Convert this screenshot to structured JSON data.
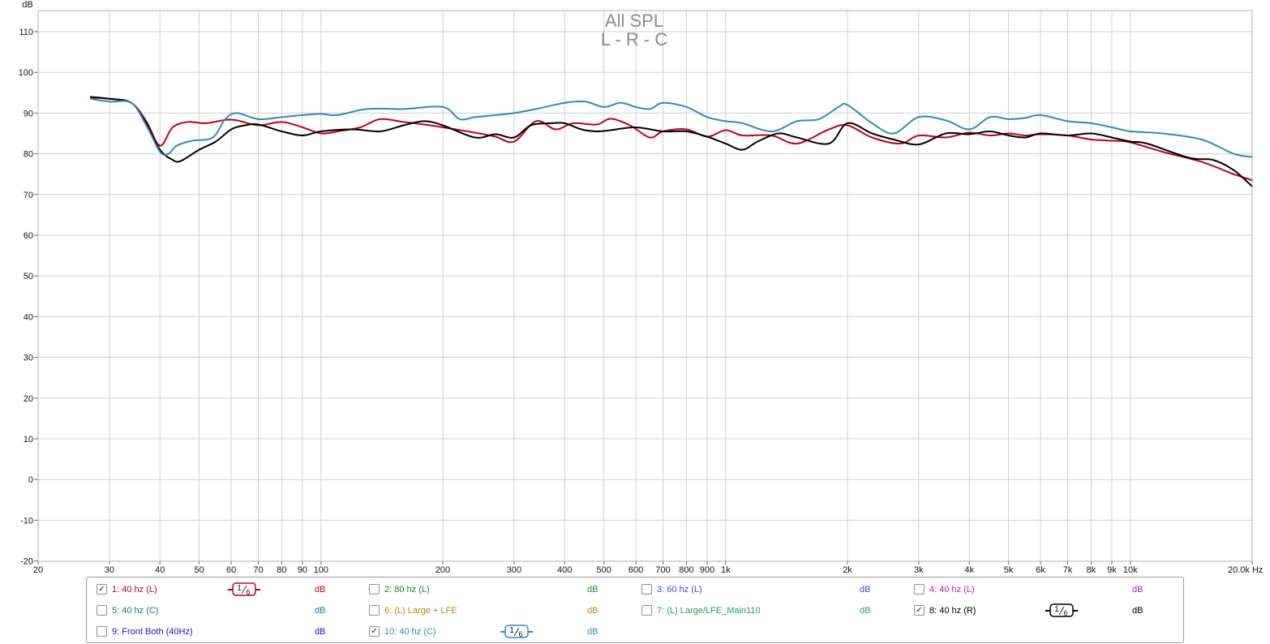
{
  "title_line1": "All SPL",
  "title_line2": "L - R - C",
  "chart_data": {
    "type": "line",
    "title": "All SPL",
    "subtitle": "L - R - C",
    "ylabel": "dB",
    "xlabel": "Hz",
    "x_scale": "log",
    "xlim": [
      20,
      20000
    ],
    "ylim": [
      -20,
      115
    ],
    "grid": true,
    "y_ticks": [
      110,
      100,
      90,
      80,
      70,
      60,
      50,
      40,
      30,
      20,
      10,
      0,
      -10,
      -20
    ],
    "x_ticks": [
      {
        "value": 20,
        "label": "20"
      },
      {
        "value": 30,
        "label": "30"
      },
      {
        "value": 40,
        "label": "40"
      },
      {
        "value": 50,
        "label": "50"
      },
      {
        "value": 60,
        "label": "60"
      },
      {
        "value": 70,
        "label": "70"
      },
      {
        "value": 80,
        "label": "80"
      },
      {
        "value": 90,
        "label": "90"
      },
      {
        "value": 100,
        "label": "100"
      },
      {
        "value": 200,
        "label": "200"
      },
      {
        "value": 300,
        "label": "300"
      },
      {
        "value": 400,
        "label": "400"
      },
      {
        "value": 500,
        "label": "500"
      },
      {
        "value": 600,
        "label": "600"
      },
      {
        "value": 700,
        "label": "700"
      },
      {
        "value": 800,
        "label": "800"
      },
      {
        "value": 900,
        "label": "900"
      },
      {
        "value": 1000,
        "label": "1k"
      },
      {
        "value": 2000,
        "label": "2k"
      },
      {
        "value": 3000,
        "label": "3k"
      },
      {
        "value": 4000,
        "label": "4k"
      },
      {
        "value": 5000,
        "label": "5k"
      },
      {
        "value": 6000,
        "label": "6k"
      },
      {
        "value": 7000,
        "label": "7k"
      },
      {
        "value": 8000,
        "label": "8k"
      },
      {
        "value": 9000,
        "label": "9k"
      },
      {
        "value": 10000,
        "label": "10k"
      },
      {
        "value": 20000,
        "label": "20.0k Hz"
      }
    ],
    "series": [
      {
        "name": "1: 40 hz (L)",
        "color": "#c0001a",
        "x": [
          27,
          30,
          34,
          37,
          40,
          43,
          47,
          52,
          58,
          62,
          70,
          80,
          90,
          100,
          110,
          125,
          140,
          160,
          180,
          200,
          240,
          270,
          300,
          340,
          380,
          420,
          480,
          520,
          580,
          650,
          700,
          800,
          900,
          1000,
          1100,
          1300,
          1500,
          1800,
          2000,
          2300,
          2700,
          3000,
          3500,
          4000,
          4500,
          5000,
          5500,
          6000,
          7000,
          8000,
          9000,
          10000,
          12000,
          15000,
          18000,
          20000
        ],
        "y": [
          94,
          93.5,
          92.5,
          88,
          82,
          86.5,
          87.8,
          87.5,
          88.3,
          88.2,
          87,
          87.8,
          86.5,
          85,
          85.5,
          86.5,
          88.5,
          87.8,
          87.2,
          86.5,
          85.2,
          84.2,
          83,
          88,
          86,
          87.5,
          87.2,
          88.6,
          87,
          84,
          85.5,
          86,
          84.2,
          85.8,
          84.5,
          84.5,
          82.5,
          86,
          87,
          84,
          82.5,
          84.5,
          84,
          85.2,
          84.5,
          85,
          84.5,
          84.8,
          84.5,
          83.5,
          83.2,
          82.8,
          80.5,
          78,
          75,
          73.5
        ]
      },
      {
        "name": "8: 40 hz (R)",
        "color": "#000000",
        "x": [
          27,
          30,
          34,
          37,
          40,
          43,
          45,
          50,
          55,
          60,
          65,
          70,
          80,
          90,
          100,
          120,
          140,
          160,
          180,
          200,
          240,
          270,
          300,
          330,
          370,
          400,
          440,
          480,
          520,
          600,
          700,
          800,
          900,
          1000,
          1100,
          1200,
          1350,
          1500,
          1800,
          2000,
          2300,
          2600,
          3000,
          3500,
          4000,
          4500,
          5000,
          5500,
          6000,
          7000,
          8000,
          9000,
          10000,
          11000,
          14000,
          16000,
          18000,
          20000
        ],
        "y": [
          93.8,
          93.5,
          92.5,
          87.5,
          81,
          78.5,
          78.2,
          81,
          83,
          86,
          87,
          87.2,
          85.5,
          84.5,
          85.5,
          86,
          85.5,
          87,
          88,
          87,
          84,
          84.8,
          84,
          87,
          87.5,
          87.5,
          86,
          85.5,
          85.8,
          86.5,
          85.5,
          85.5,
          84.2,
          82.5,
          81,
          83,
          85,
          84,
          82.5,
          87.5,
          85,
          83.5,
          82.3,
          85,
          84.8,
          85.5,
          84.5,
          84,
          85,
          84.5,
          85,
          84,
          83,
          82.5,
          79,
          78.5,
          76,
          72
        ]
      },
      {
        "name": "10: 40 hz (C)",
        "color": "#2f8ab8",
        "x": [
          27,
          30,
          34,
          37,
          40,
          42,
          44,
          48,
          54,
          58,
          62,
          70,
          80,
          90,
          100,
          110,
          130,
          160,
          200,
          220,
          240,
          270,
          300,
          340,
          400,
          450,
          500,
          550,
          600,
          650,
          700,
          800,
          900,
          1000,
          1100,
          1300,
          1500,
          1700,
          1900,
          2000,
          2300,
          2600,
          3000,
          3500,
          4000,
          4500,
          5000,
          5500,
          6000,
          7000,
          8000,
          9000,
          10000,
          12000,
          15000,
          18000,
          20000
        ],
        "y": [
          93.5,
          92.8,
          92.5,
          87,
          80.5,
          80,
          82,
          83.2,
          84,
          88.5,
          90,
          88.5,
          89,
          89.5,
          89.8,
          89.5,
          91,
          91,
          91.5,
          88.5,
          89,
          89.5,
          90,
          91,
          92.5,
          92.8,
          91.5,
          92.5,
          91.5,
          91,
          92.5,
          91.5,
          89,
          88,
          87.5,
          85.5,
          88,
          88.5,
          91.5,
          92,
          87.5,
          85,
          89,
          88.2,
          86,
          89,
          88.5,
          88.8,
          89.5,
          88,
          87.5,
          86.5,
          85.5,
          85,
          83.5,
          80,
          79.2
        ]
      }
    ]
  },
  "legend": {
    "items": [
      {
        "label": "1: 40 hz (L)",
        "color": "#c0001a",
        "checked": true,
        "smoothing": "1/6",
        "unit": "dB"
      },
      {
        "label": "2: 80 hz (L)",
        "color": "#1c8a1c",
        "checked": false,
        "smoothing": "",
        "unit": "dB"
      },
      {
        "label": "3: 60 hz (L)",
        "color": "#3b4fd1",
        "checked": false,
        "smoothing": "",
        "unit": "dB"
      },
      {
        "label": "4: 40 hz (L)",
        "color": "#b21fbd",
        "checked": false,
        "smoothing": "",
        "unit": "dB"
      },
      {
        "label": "5: 40 hz (C)",
        "color": "#117a8b",
        "checked": false,
        "smoothing": "",
        "unit": "dB"
      },
      {
        "label": "6: (L) Large + LFE",
        "color": "#b8860b",
        "checked": false,
        "smoothing": "",
        "unit": "dB"
      },
      {
        "label": "7: (L) Large/LFE_Main110",
        "color": "#22a05a",
        "checked": false,
        "smoothing": "",
        "unit": "dB"
      },
      {
        "label": "8: 40 hz (R)",
        "color": "#000000",
        "checked": true,
        "smoothing": "1/6",
        "unit": "dB"
      },
      {
        "label": "9: Front Both (40Hz)",
        "color": "#1515c8",
        "checked": false,
        "smoothing": "",
        "unit": "dB"
      },
      {
        "label": "10: 40 hz (C)",
        "color": "#2f8ab8",
        "checked": true,
        "smoothing": "1/6",
        "unit": "dB"
      }
    ]
  }
}
